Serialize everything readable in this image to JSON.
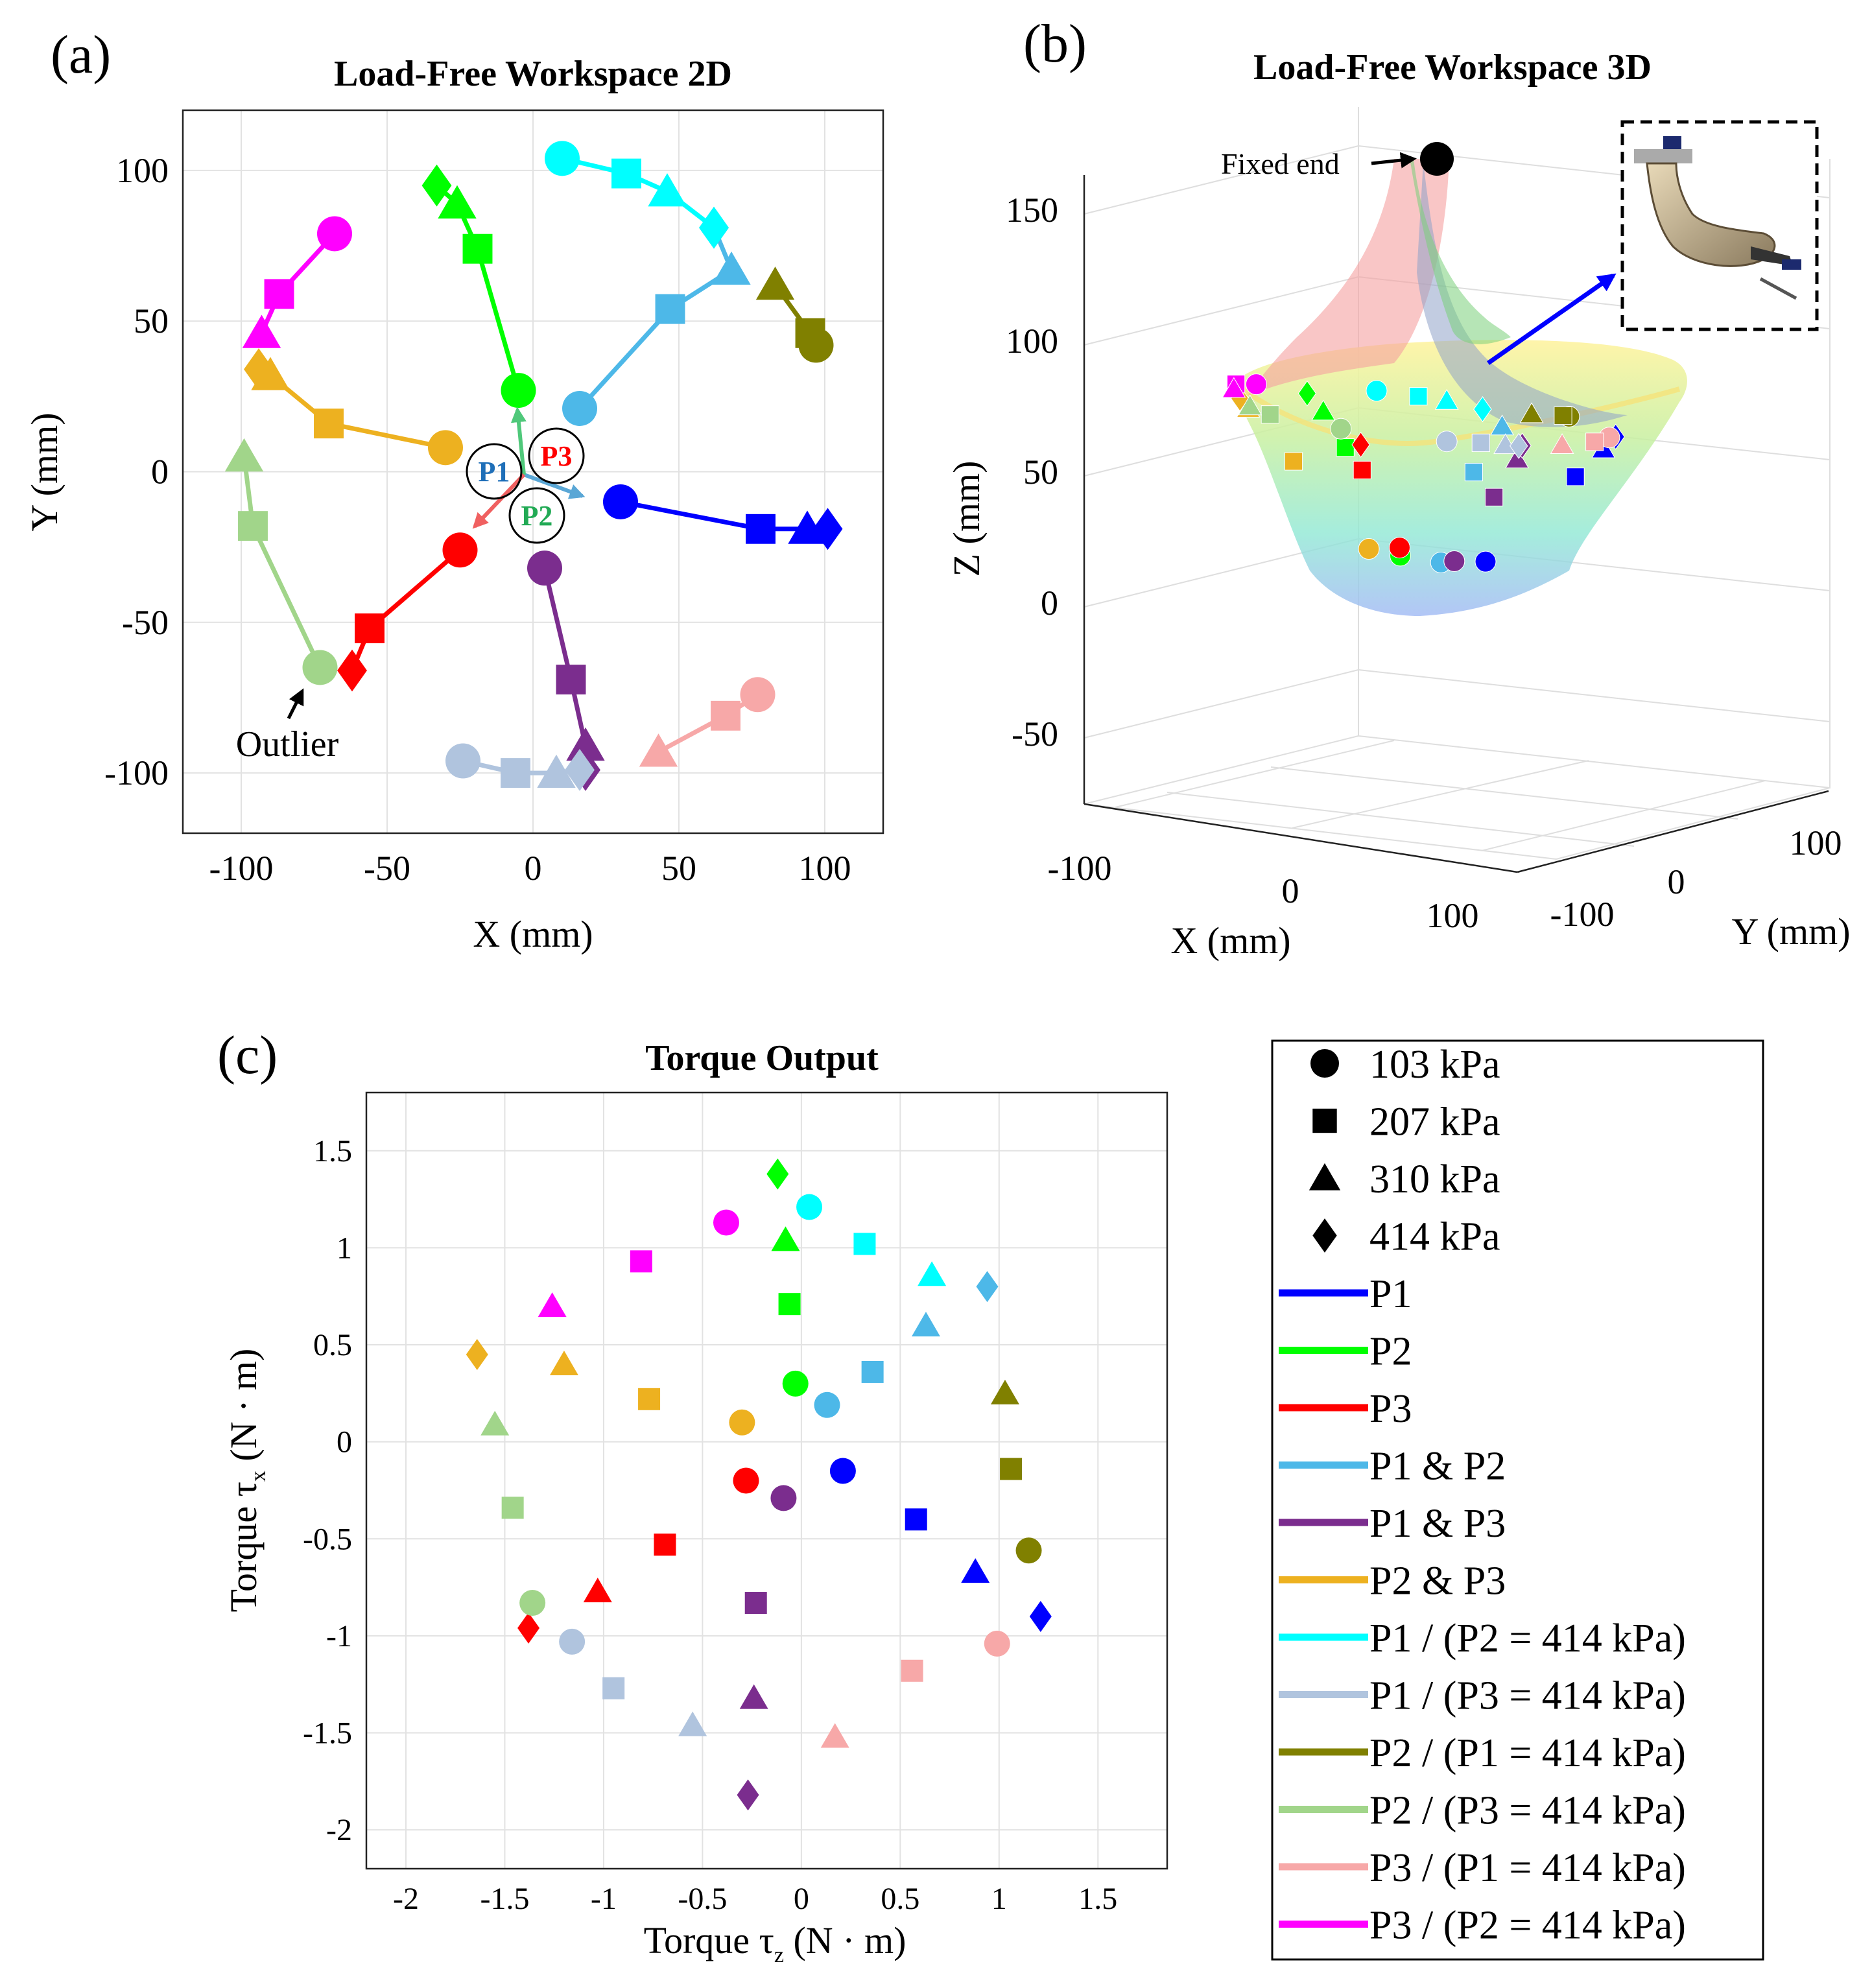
{
  "panels": {
    "a": {
      "label": "(a)",
      "title": "Load-Free Workspace 2D",
      "xlabel": "X (mm)",
      "ylabel": "Y (mm)",
      "outlier_label": "Outlier",
      "vector_labels": {
        "p1": "P1",
        "p2": "P2",
        "p3": "P3"
      }
    },
    "b": {
      "label": "(b)",
      "title": "Load-Free Workspace 3D",
      "xlabel": "X (mm)",
      "ylabel": "Y (mm)",
      "zlabel": "Z (mm)",
      "fixed_end_label": "Fixed end"
    },
    "c": {
      "label": "(c)",
      "title": "Torque Output",
      "xlabel": "Torque τ",
      "xlabel_sub": "z",
      "xlabel_unit": " (N · m)",
      "ylabel": "Torque τ",
      "ylabel_sub": "x",
      "ylabel_unit": " (N · m)"
    }
  },
  "legend": {
    "markers": [
      {
        "shape": "circle",
        "label": "103 kPa"
      },
      {
        "shape": "square",
        "label": "207 kPa"
      },
      {
        "shape": "triangle",
        "label": "310 kPa"
      },
      {
        "shape": "diamond",
        "label": "414 kPa"
      }
    ],
    "lines": [
      {
        "color": "#0000ff",
        "label": "P1"
      },
      {
        "color": "#00ff00",
        "label": "P2"
      },
      {
        "color": "#ff0000",
        "label": "P3"
      },
      {
        "color": "#4db8e8",
        "label": "P1 & P2"
      },
      {
        "color": "#7b2d8e",
        "label": "P1 & P3"
      },
      {
        "color": "#edb120",
        "label": "P2 & P3"
      },
      {
        "color": "#00ffff",
        "label": "P1 / (P2 = 414 kPa)"
      },
      {
        "color": "#b0c4de",
        "label": "P1 / (P3 = 414 kPa)"
      },
      {
        "color": "#808000",
        "label": "P2 / (P1 = 414 kPa)"
      },
      {
        "color": "#a1d58a",
        "label": "P2 / (P3 = 414 kPa)"
      },
      {
        "color": "#f7a8a8",
        "label": "P3 / (P1 = 414 kPa)"
      },
      {
        "color": "#ff00ff",
        "label": "P3 / (P2 = 414 kPa)"
      }
    ]
  },
  "chart_data": [
    {
      "type": "line",
      "title": "Load-Free Workspace 2D",
      "xlabel": "X (mm)",
      "ylabel": "Y (mm)",
      "xlim": [
        -120,
        120
      ],
      "ylim": [
        -120,
        120
      ],
      "xticks": [
        -100,
        -50,
        0,
        50,
        100
      ],
      "yticks": [
        -100,
        -50,
        0,
        50,
        100
      ],
      "grid": true,
      "markers_order": [
        "103 kPa",
        "207 kPa",
        "310 kPa",
        "414 kPa"
      ],
      "series": [
        {
          "name": "P1",
          "color": "#0000ff",
          "x": [
            30,
            78,
            94,
            101
          ],
          "y": [
            -10,
            -19,
            -19,
            -19
          ]
        },
        {
          "name": "P2",
          "color": "#00ff00",
          "x": [
            -5,
            -19,
            -26,
            -33
          ],
          "y": [
            27,
            74,
            89,
            95
          ]
        },
        {
          "name": "P3",
          "color": "#ff0000",
          "x": [
            -25,
            -56,
            null,
            -62
          ],
          "y": [
            -26,
            -52,
            null,
            -66
          ]
        },
        {
          "name": "P1 & P2",
          "color": "#4db8e8",
          "x": [
            16,
            47,
            68,
            62
          ],
          "y": [
            21,
            54,
            67,
            81
          ]
        },
        {
          "name": "P1 & P3",
          "color": "#7b2d8e",
          "x": [
            4,
            13,
            18,
            18
          ],
          "y": [
            -32,
            -69,
            -91,
            -99
          ]
        },
        {
          "name": "P2 & P3",
          "color": "#edb120",
          "x": [
            -30,
            -70,
            -90,
            -94
          ],
          "y": [
            8,
            16,
            32,
            34
          ]
        },
        {
          "name": "P1 / (P2 = 414 kPa)",
          "color": "#00ffff",
          "x": [
            10,
            32,
            46,
            62
          ],
          "y": [
            104,
            99,
            93,
            81
          ]
        },
        {
          "name": "P1 / (P3 = 414 kPa)",
          "color": "#b0c4de",
          "x": [
            -24,
            -6,
            8,
            16
          ],
          "y": [
            -96,
            -100,
            -100,
            -99
          ]
        },
        {
          "name": "P2 / (P1 = 414 kPa)",
          "color": "#808000",
          "x": [
            97,
            95,
            83,
            null
          ],
          "y": [
            42,
            46,
            62,
            null
          ]
        },
        {
          "name": "P2 / (P3 = 414 kPa)",
          "color": "#a1d58a",
          "x": [
            -73,
            -96,
            -99,
            null
          ],
          "y": [
            -65,
            -18,
            5,
            null
          ]
        },
        {
          "name": "P3 / (P1 = 414 kPa)",
          "color": "#f7a8a8",
          "x": [
            77,
            66,
            43,
            null
          ],
          "y": [
            -74,
            -81,
            -93,
            null
          ]
        },
        {
          "name": "P3 / (P2 = 414 kPa)",
          "color": "#ff00ff",
          "x": [
            -68,
            -87,
            -93,
            null
          ],
          "y": [
            79,
            59,
            46,
            null
          ]
        }
      ],
      "annotations": [
        "Outlier",
        "P1",
        "P2",
        "P3"
      ]
    },
    {
      "type": "scatter",
      "title": "Load-Free Workspace 3D",
      "xlabel": "X (mm)",
      "ylabel": "Y (mm)",
      "zlabel": "Z (mm)",
      "xticks": [
        -100,
        0,
        100
      ],
      "yticks": [
        -100,
        0,
        100
      ],
      "zticks": [
        -50,
        0,
        50,
        100,
        150
      ],
      "zlim": [
        -80,
        170
      ],
      "fixed_end": {
        "x": 0,
        "y": 0,
        "z": 170
      },
      "annotations": [
        "Fixed end"
      ]
    },
    {
      "type": "scatter",
      "title": "Torque Output",
      "xlabel": "Torque τz (N · m)",
      "ylabel": "Torque τx (N · m)",
      "xlim": [
        -2.2,
        1.85
      ],
      "ylim": [
        -2.2,
        1.8
      ],
      "xticks": [
        -2,
        -1.5,
        -1,
        -0.5,
        0,
        0.5,
        1,
        1.5
      ],
      "yticks": [
        -2,
        -1.5,
        -1,
        -0.5,
        0,
        0.5,
        1,
        1.5
      ],
      "grid": true,
      "markers_order": [
        "103 kPa",
        "207 kPa",
        "310 kPa",
        "414 kPa"
      ],
      "series": [
        {
          "name": "P1",
          "color": "#0000ff",
          "x": [
            0.21,
            0.58,
            0.88,
            1.21
          ],
          "y": [
            -0.15,
            -0.4,
            -0.67,
            -0.9
          ]
        },
        {
          "name": "P2",
          "color": "#00ff00",
          "x": [
            -0.03,
            -0.06,
            -0.08,
            -0.12
          ],
          "y": [
            0.3,
            0.71,
            1.04,
            1.38
          ]
        },
        {
          "name": "P3",
          "color": "#ff0000",
          "x": [
            -0.28,
            -0.69,
            -1.03,
            -1.38
          ],
          "y": [
            -0.2,
            -0.53,
            -0.77,
            -0.96
          ]
        },
        {
          "name": "P1 & P2",
          "color": "#4db8e8",
          "x": [
            0.13,
            0.36,
            0.63,
            0.94
          ],
          "y": [
            0.19,
            0.36,
            0.6,
            0.8
          ]
        },
        {
          "name": "P1 & P3",
          "color": "#7b2d8e",
          "x": [
            -0.09,
            -0.23,
            -0.24,
            -0.27
          ],
          "y": [
            -0.29,
            -0.83,
            -1.32,
            -1.82
          ]
        },
        {
          "name": "P2 & P3",
          "color": "#edb120",
          "x": [
            -0.3,
            -0.77,
            -1.2,
            -1.64
          ],
          "y": [
            0.1,
            0.22,
            0.4,
            0.45
          ]
        },
        {
          "name": "P1 / (P2 = 414 kPa)",
          "color": "#00ffff",
          "x": [
            0.04,
            0.32,
            0.66,
            null
          ],
          "y": [
            1.21,
            1.02,
            0.86,
            null
          ]
        },
        {
          "name": "P1 / (P3 = 414 kPa)",
          "color": "#b0c4de",
          "x": [
            -1.16,
            -0.95,
            -0.55,
            null
          ],
          "y": [
            -1.03,
            -1.27,
            -1.46,
            null
          ]
        },
        {
          "name": "P2 / (P1 = 414 kPa)",
          "color": "#808000",
          "x": [
            1.15,
            1.06,
            1.03,
            null
          ],
          "y": [
            -0.56,
            -0.14,
            0.25,
            null
          ]
        },
        {
          "name": "P2 / (P3 = 414 kPa)",
          "color": "#a1d58a",
          "x": [
            -1.36,
            -1.46,
            -1.55,
            null
          ],
          "y": [
            -0.83,
            -0.34,
            0.09,
            null
          ]
        },
        {
          "name": "P3 / (P1 = 414 kPa)",
          "color": "#f7a8a8",
          "x": [
            0.99,
            0.56,
            0.17,
            null
          ],
          "y": [
            -1.04,
            -1.18,
            -1.52,
            null
          ]
        },
        {
          "name": "P3 / (P2 = 414 kPa)",
          "color": "#ff00ff",
          "x": [
            -0.38,
            -0.81,
            -1.26,
            null
          ],
          "y": [
            1.13,
            0.93,
            0.7,
            null
          ]
        }
      ]
    }
  ]
}
